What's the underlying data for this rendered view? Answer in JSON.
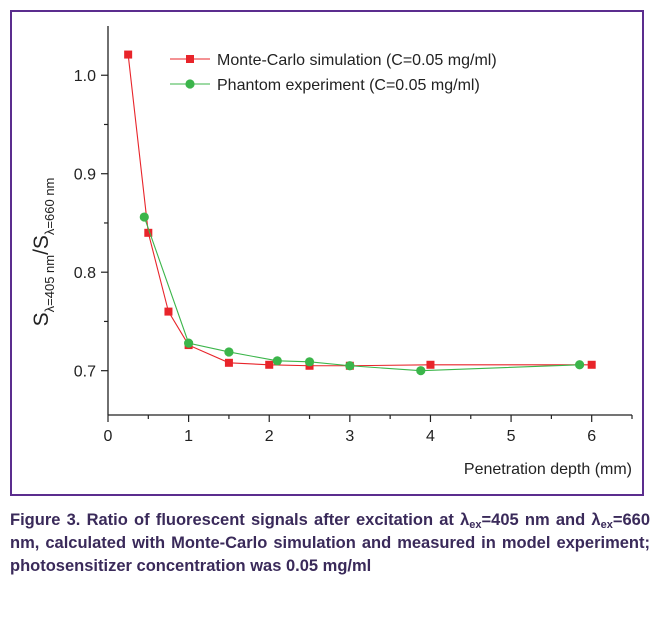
{
  "chart_data": {
    "type": "line",
    "title": "",
    "xlabel": "Penetration depth (mm)",
    "ylabel": {
      "main1": "S",
      "sub1": "λ=405 nm",
      "slash": "/S",
      "sub2": "λ=660 nm"
    },
    "xlim": [
      0,
      6.5
    ],
    "ylim": [
      0.655,
      1.05
    ],
    "x_ticks": [
      0,
      1,
      2,
      3,
      4,
      5,
      6
    ],
    "y_ticks": [
      0.7,
      0.8,
      0.9,
      1.0
    ],
    "x_tick_labels": [
      "0",
      "1",
      "2",
      "3",
      "4",
      "5",
      "6"
    ],
    "y_tick_labels": [
      "0.7",
      "0.8",
      "0.9",
      "1.0"
    ],
    "grid": false,
    "legend_position": "top-center",
    "series": [
      {
        "name": "Monte-Carlo simulation (C=0.05 mg/ml)",
        "color": "#e8242a",
        "marker": "square",
        "x": [
          0.25,
          0.5,
          0.75,
          1.0,
          1.5,
          2.0,
          2.5,
          3.0,
          4.0,
          6.0
        ],
        "y": [
          1.021,
          0.84,
          0.76,
          0.726,
          0.708,
          0.706,
          0.705,
          0.705,
          0.706,
          0.706
        ]
      },
      {
        "name": "Phantom experiment (C=0.05 mg/ml)",
        "color": "#3bb54a",
        "marker": "circle",
        "x": [
          0.45,
          1.0,
          1.5,
          2.1,
          2.5,
          3.0,
          3.88,
          5.85
        ],
        "y": [
          0.856,
          0.728,
          0.719,
          0.71,
          0.709,
          0.705,
          0.7,
          0.706
        ]
      }
    ]
  },
  "caption": {
    "part1": "Figure 3. Ratio of fluorescent signals after excitation at λ",
    "sub_a": "ex",
    "part2": "=405 nm and λ",
    "sub_b": "ex",
    "part3": "=660 nm, calculated with Monte-Carlo simulation and measured in model experiment; photosensitizer concentration was 0.05 mg/ml"
  },
  "colors": {
    "frame": "#5b2d8e",
    "caption_text": "#3a2a5a"
  }
}
